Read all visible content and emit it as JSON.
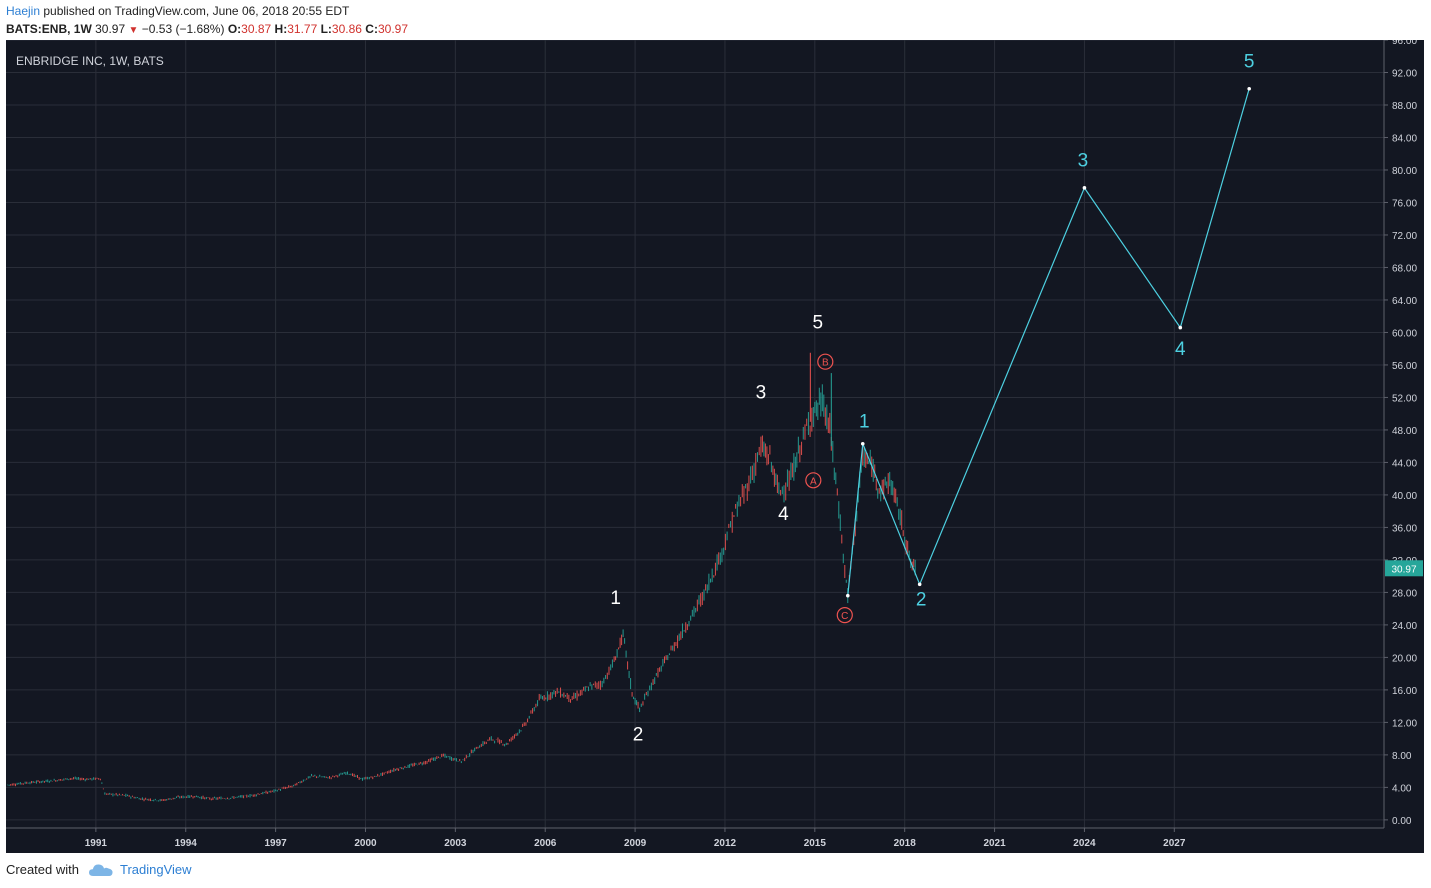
{
  "header": {
    "author": "Haejin",
    "published_text": " published on TradingView.com, June 06, 2018 20:55 EDT",
    "symbol": "BATS:ENB, 1W",
    "last": "30.97",
    "change": "−0.53 (−1.68%)",
    "o_label": "O:",
    "o_value": "30.87",
    "h_label": "H:",
    "h_value": "31.77",
    "l_label": "L:",
    "l_value": "30.86",
    "c_label": "C:",
    "c_value": "30.97"
  },
  "chart_data": {
    "type": "line",
    "title": "ENBRIDGE INC, 1W, BATS",
    "xlabel": "",
    "ylabel": "",
    "x_range": [
      1988.0,
      2034.0
    ],
    "ylim": [
      -1.0,
      96.0
    ],
    "x_ticks": [
      "1991",
      "1994",
      "1997",
      "2000",
      "2003",
      "2006",
      "2009",
      "2012",
      "2015",
      "2018",
      "2021",
      "2024",
      "2027"
    ],
    "x_tick_values": [
      1991,
      1994,
      1997,
      2000,
      2003,
      2006,
      2009,
      2012,
      2015,
      2018,
      2021,
      2024,
      2027
    ],
    "y_ticks": [
      "0.00",
      "4.00",
      "8.00",
      "12.00",
      "16.00",
      "20.00",
      "24.00",
      "28.00",
      "32.00",
      "36.00",
      "40.00",
      "44.00",
      "48.00",
      "52.00",
      "56.00",
      "60.00",
      "64.00",
      "68.00",
      "72.00",
      "76.00",
      "80.00",
      "84.00",
      "88.00",
      "92.00",
      "96.00"
    ],
    "y_tick_values": [
      0,
      4,
      8,
      12,
      16,
      20,
      24,
      28,
      32,
      36,
      40,
      44,
      48,
      52,
      56,
      60,
      64,
      68,
      72,
      76,
      80,
      84,
      88,
      92,
      96
    ],
    "grid": true,
    "last_price": "30.97",
    "last_price_value": 30.97,
    "price_series": {
      "name": "ENB",
      "points": [
        [
          1988.05,
          4.3
        ],
        [
          1988.8,
          4.6
        ],
        [
          1989.5,
          4.8
        ],
        [
          1990.2,
          5.1
        ],
        [
          1990.7,
          5.0
        ],
        [
          1991.15,
          5.1
        ],
        [
          1991.3,
          3.2
        ],
        [
          1992.0,
          3.0
        ],
        [
          1992.5,
          2.6
        ],
        [
          1993.2,
          2.4
        ],
        [
          1993.8,
          2.8
        ],
        [
          1994.3,
          2.9
        ],
        [
          1994.8,
          2.6
        ],
        [
          1995.5,
          2.7
        ],
        [
          1996.2,
          3.0
        ],
        [
          1997.0,
          3.6
        ],
        [
          1997.6,
          4.2
        ],
        [
          1998.2,
          5.4
        ],
        [
          1998.8,
          5.2
        ],
        [
          1999.4,
          5.8
        ],
        [
          1999.9,
          5.0
        ],
        [
          2000.3,
          5.3
        ],
        [
          2001.0,
          6.2
        ],
        [
          2002.0,
          7.1
        ],
        [
          2002.6,
          7.9
        ],
        [
          2003.2,
          7.2
        ],
        [
          2003.7,
          8.8
        ],
        [
          2004.2,
          10.0
        ],
        [
          2004.7,
          9.3
        ],
        [
          2005.3,
          11.6
        ],
        [
          2005.8,
          14.8
        ],
        [
          2006.4,
          15.8
        ],
        [
          2006.9,
          14.9
        ],
        [
          2007.5,
          16.4
        ],
        [
          2007.9,
          16.8
        ],
        [
          2008.3,
          19.5
        ],
        [
          2008.6,
          22.8
        ],
        [
          2008.9,
          15.5
        ],
        [
          2009.15,
          13.6
        ],
        [
          2009.6,
          17.0
        ],
        [
          2010.2,
          20.8
        ],
        [
          2010.8,
          24.5
        ],
        [
          2011.3,
          27.8
        ],
        [
          2011.9,
          33.0
        ],
        [
          2012.3,
          37.5
        ],
        [
          2012.8,
          41.5
        ],
        [
          2013.2,
          45.8
        ],
        [
          2013.5,
          44.5
        ],
        [
          2013.8,
          40.3
        ],
        [
          2014.2,
          42.0
        ],
        [
          2014.5,
          45.8
        ],
        [
          2014.9,
          49.8
        ],
        [
          2015.25,
          51.5
        ],
        [
          2015.5,
          48.0
        ],
        [
          2015.8,
          38.5
        ],
        [
          2016.0,
          30.5
        ],
        [
          2016.1,
          27.8
        ],
        [
          2016.4,
          38.0
        ],
        [
          2016.6,
          44.8
        ],
        [
          2016.9,
          43.5
        ],
        [
          2017.2,
          40.5
        ],
        [
          2017.5,
          41.8
        ],
        [
          2017.7,
          39.5
        ],
        [
          2018.0,
          35.0
        ],
        [
          2018.2,
          31.5
        ],
        [
          2018.4,
          30.97
        ]
      ]
    },
    "cyan_wave_line": [
      [
        2016.1,
        27.6
      ],
      [
        2016.6,
        46.3
      ],
      [
        2018.5,
        29.0
      ],
      [
        2024.0,
        77.8
      ],
      [
        2027.2,
        60.6
      ],
      [
        2029.5,
        90.0
      ]
    ],
    "wave_labels": [
      {
        "text": "1",
        "x": 2008.35,
        "y": 26.6,
        "color": "#ffffff"
      },
      {
        "text": "2",
        "x": 2009.1,
        "y": 9.8,
        "color": "#ffffff"
      },
      {
        "text": "3",
        "x": 2013.2,
        "y": 51.9,
        "color": "#ffffff"
      },
      {
        "text": "4",
        "x": 2013.95,
        "y": 36.9,
        "color": "#ffffff"
      },
      {
        "text": "5",
        "x": 2015.1,
        "y": 60.5,
        "color": "#ffffff"
      },
      {
        "text": "1",
        "x": 2016.65,
        "y": 48.3,
        "color": "#4dd0e1"
      },
      {
        "text": "2",
        "x": 2018.55,
        "y": 26.4,
        "color": "#4dd0e1"
      },
      {
        "text": "3",
        "x": 2023.95,
        "y": 80.4,
        "color": "#4dd0e1"
      },
      {
        "text": "4",
        "x": 2027.2,
        "y": 57.2,
        "color": "#4dd0e1"
      },
      {
        "text": "5",
        "x": 2029.5,
        "y": 92.6,
        "color": "#4dd0e1"
      }
    ],
    "circle_labels": [
      {
        "text": "A",
        "x": 2014.95,
        "y": 41.8
      },
      {
        "text": "B",
        "x": 2015.35,
        "y": 56.4
      },
      {
        "text": "C",
        "x": 2016.0,
        "y": 25.2
      }
    ]
  },
  "footer": {
    "created_with": "Created with",
    "brand": "TradingView"
  }
}
